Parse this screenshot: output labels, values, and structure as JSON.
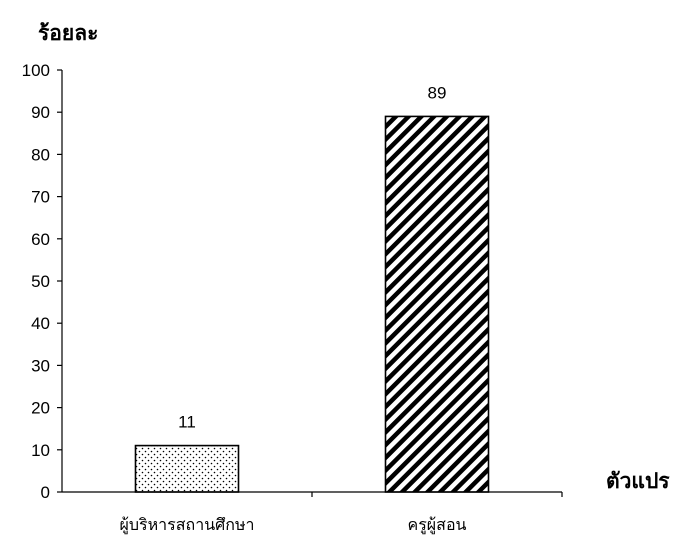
{
  "chart_data": {
    "type": "bar",
    "title": "",
    "ylabel": "ร้อยละ",
    "xlabel": "ตัวแปร",
    "categories": [
      "ผู้บริหารสถานศึกษา",
      "ครูผู้สอน"
    ],
    "values": [
      11,
      89
    ],
    "data_labels": [
      "11",
      "89"
    ],
    "ylim": [
      0,
      100
    ],
    "yticks": [
      0,
      10,
      20,
      30,
      40,
      50,
      60,
      70,
      80,
      90,
      100
    ],
    "ytick_labels": [
      "0",
      "10",
      "20",
      "30",
      "40",
      "50",
      "60",
      "70",
      "80",
      "90",
      "100"
    ],
    "grid": false,
    "legend": "none",
    "bar_fills": [
      "dotted",
      "diagonal-hatch"
    ],
    "bar_color": "#000000",
    "background": "#ffffff"
  }
}
